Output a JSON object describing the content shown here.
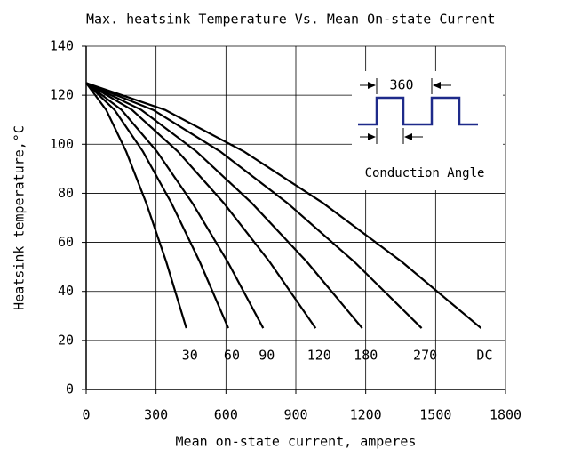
{
  "chart_data": {
    "type": "line",
    "title": "Max. heatsink Temperature Vs. Mean On-state Current",
    "x_label": "Mean on-state current, amperes",
    "y_label": "Heatsink temperature,°C",
    "xlim": [
      0,
      1800
    ],
    "xticks": [
      0,
      300,
      600,
      900,
      1200,
      1500,
      1800
    ],
    "ylim": [
      0,
      140
    ],
    "yticks": [
      0,
      20,
      40,
      60,
      80,
      100,
      120,
      140
    ],
    "grid": true,
    "color": "#000000",
    "series": [
      {
        "name": "30",
        "x": [
          0,
          86,
          172,
          258,
          344,
          430
        ],
        "values": [
          125,
          114,
          97,
          76,
          52,
          25
        ]
      },
      {
        "name": "60",
        "x": [
          0,
          122,
          244,
          366,
          488,
          610
        ],
        "values": [
          125,
          114,
          97,
          76,
          52,
          25
        ]
      },
      {
        "name": "90",
        "x": [
          0,
          152,
          304,
          456,
          608,
          760
        ],
        "values": [
          125,
          114,
          97,
          76,
          52,
          25
        ]
      },
      {
        "name": "120",
        "x": [
          0,
          197,
          394,
          591,
          788,
          985
        ],
        "values": [
          125,
          114,
          97,
          76,
          52,
          25
        ]
      },
      {
        "name": "180",
        "x": [
          0,
          237,
          474,
          711,
          948,
          1185
        ],
        "values": [
          125,
          114,
          97,
          76,
          52,
          25
        ]
      },
      {
        "name": "270",
        "x": [
          0,
          288,
          576,
          864,
          1152,
          1440
        ],
        "values": [
          125,
          114,
          97,
          76,
          52,
          25
        ]
      },
      {
        "name": "DC",
        "x": [
          0,
          339,
          678,
          1017,
          1356,
          1695
        ],
        "values": [
          125,
          114,
          97,
          76,
          52,
          25
        ]
      }
    ],
    "inset": {
      "period_label": "360",
      "caption": "Conduction Angle"
    }
  }
}
